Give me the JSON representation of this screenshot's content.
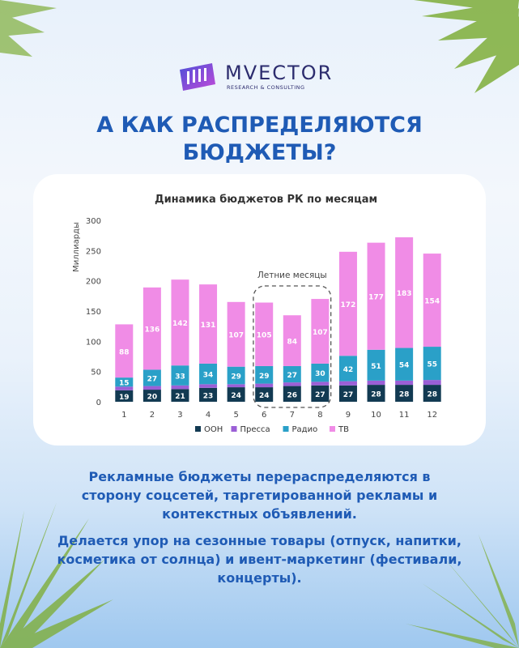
{
  "brand": {
    "name": "MVECTOR",
    "tagline": "RESEARCH & CONSULTING"
  },
  "headline": "А КАК РАСПРЕДЕЛЯЮТСЯ БЮДЖЕТЫ?",
  "paragraphs": [
    "Рекламные бюджеты перераспределяются в сторону соцсетей, таргетированной рекламы и контекстных объявлений.",
    "Делается упор на сезонные товары (отпуск, напитки, косметика от солнца) и ивент-маркетинг (фестивали, концерты)."
  ],
  "colors": {
    "headline": "#1f5bb5",
    "ooh": "#123a52",
    "press": "#9b5fd6",
    "radio": "#2aa0c8",
    "tv": "#f08ce6"
  },
  "chart_data": {
    "type": "bar",
    "stacked": true,
    "title": "Динамика бюджетов РК по месяцам",
    "ylabel": "Миллиарды",
    "xlabel": "",
    "ylim": [
      0,
      300
    ],
    "yticks": [
      0,
      50,
      100,
      150,
      200,
      250,
      300
    ],
    "categories": [
      "1",
      "2",
      "3",
      "4",
      "5",
      "6",
      "7",
      "8",
      "9",
      "10",
      "11",
      "12"
    ],
    "series": [
      {
        "name": "ООН",
        "color": "#123a52",
        "values": [
          19,
          20,
          21,
          23,
          24,
          24,
          26,
          27,
          27,
          28,
          28,
          28
        ]
      },
      {
        "name": "Пресса",
        "color": "#9b5fd6",
        "values": [
          6,
          6,
          6,
          6,
          5,
          6,
          6,
          6,
          7,
          7,
          7,
          8
        ]
      },
      {
        "name": "Радио",
        "color": "#2aa0c8",
        "values": [
          15,
          27,
          33,
          34,
          29,
          29,
          27,
          30,
          42,
          51,
          54,
          55
        ]
      },
      {
        "name": "ТВ",
        "color": "#f08ce6",
        "values": [
          88,
          136,
          142,
          131,
          107,
          105,
          84,
          107,
          172,
          177,
          183,
          154
        ]
      }
    ],
    "data_labels": {
      "ООН": [
        "19",
        "20",
        "21",
        "23",
        "24",
        "24",
        "26",
        "27",
        "27",
        "28",
        "28",
        "28"
      ],
      "Радио": [
        "15",
        "27",
        "33",
        "34",
        "29",
        "29",
        "27",
        "30",
        "42",
        "51",
        "54",
        "55"
      ],
      "ТВ": [
        "88",
        "136",
        "142",
        "131",
        "107",
        "105",
        "84",
        "107",
        "172",
        "177",
        "183",
        "154"
      ]
    },
    "annotation": {
      "text": "Летние месяцы",
      "categories": [
        "6",
        "7",
        "8"
      ]
    },
    "grid": false,
    "legend": "bottom"
  }
}
